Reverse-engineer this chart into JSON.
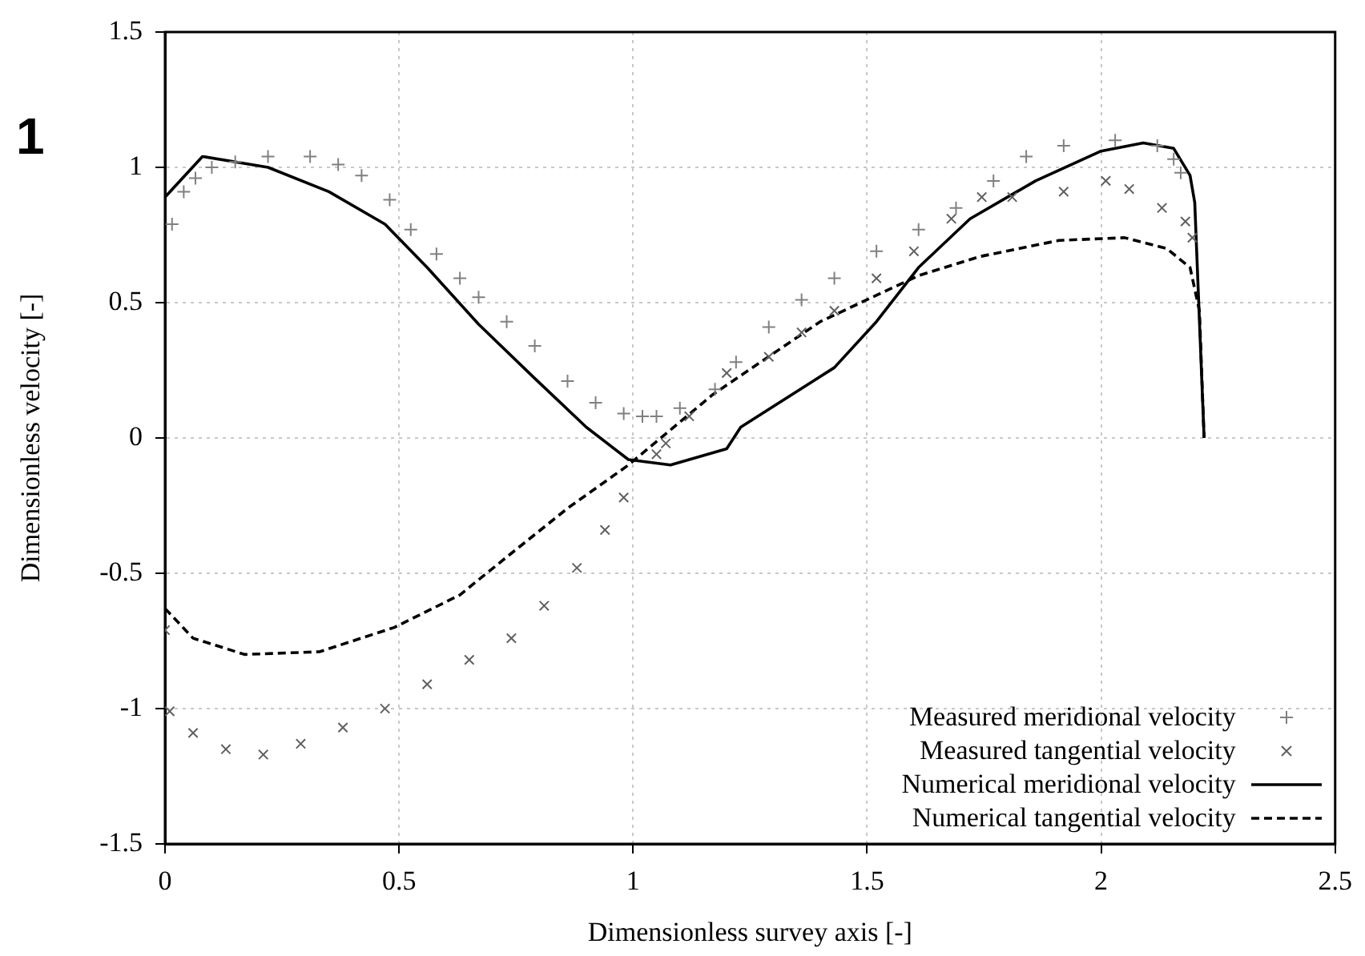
{
  "chart_data": {
    "type": "line",
    "xlabel": "Dimensionless survey axis [-]",
    "ylabel": "Dimensionless velocity [-]",
    "annotations": [
      "1"
    ],
    "xlim": [
      0,
      2.5
    ],
    "xticks": [
      0,
      0.5,
      1,
      1.5,
      2,
      2.5
    ],
    "ylim": [
      -1.5,
      1.5
    ],
    "yticks": [
      -1.5,
      -1,
      -0.5,
      0,
      0.5,
      1,
      1.5
    ],
    "grid": true,
    "legend": "bottom right",
    "series": [
      {
        "name": "Measured meridional velocity",
        "type": "scatter",
        "marker": "plus",
        "color": "#808080",
        "x": [
          0.015,
          0.04,
          0.065,
          0.1,
          0.15,
          0.22,
          0.31,
          0.37,
          0.42,
          0.48,
          0.525,
          0.58,
          0.63,
          0.67,
          0.73,
          0.79,
          0.86,
          0.92,
          0.98,
          1.02,
          1.05,
          1.1,
          1.175,
          1.22,
          1.29,
          1.36,
          1.43,
          1.52,
          1.61,
          1.69,
          1.77,
          1.84,
          1.92,
          2.03,
          2.12,
          2.155,
          2.17
        ],
        "values": [
          0.79,
          0.91,
          0.96,
          1.0,
          1.02,
          1.04,
          1.04,
          1.01,
          0.97,
          0.88,
          0.77,
          0.68,
          0.59,
          0.52,
          0.43,
          0.34,
          0.21,
          0.13,
          0.09,
          0.08,
          0.08,
          0.11,
          0.18,
          0.28,
          0.41,
          0.51,
          0.59,
          0.69,
          0.77,
          0.85,
          0.95,
          1.04,
          1.08,
          1.1,
          1.08,
          1.03,
          0.98
        ]
      },
      {
        "name": "Measured tangential velocity",
        "type": "scatter",
        "marker": "cross",
        "color": "#606060",
        "x": [
          0,
          0.01,
          0.06,
          0.13,
          0.21,
          0.29,
          0.38,
          0.47,
          0.56,
          0.65,
          0.74,
          0.81,
          0.88,
          0.94,
          0.98,
          1.05,
          1.07,
          1.12,
          1.2,
          1.29,
          1.36,
          1.43,
          1.52,
          1.6,
          1.68,
          1.745,
          1.81,
          1.92,
          2.01,
          2.06,
          2.13,
          2.18,
          2.195
        ],
        "values": [
          -0.71,
          -1.01,
          -1.09,
          -1.15,
          -1.17,
          -1.13,
          -1.07,
          -1.0,
          -0.91,
          -0.82,
          -0.74,
          -0.62,
          -0.48,
          -0.34,
          -0.22,
          -0.06,
          -0.02,
          0.08,
          0.24,
          0.3,
          0.39,
          0.47,
          0.59,
          0.69,
          0.81,
          0.89,
          0.89,
          0.91,
          0.95,
          0.92,
          0.85,
          0.8,
          0.74
        ]
      },
      {
        "name": "Numerical meridional velocity",
        "type": "line",
        "marker": "none",
        "line_style": "solid",
        "color": "#000000",
        "x": [
          0,
          0.08,
          0.22,
          0.35,
          0.47,
          0.56,
          0.67,
          0.79,
          0.9,
          0.99,
          1.08,
          1.2,
          1.23,
          1.43,
          1.52,
          1.61,
          1.72,
          1.86,
          2.0,
          2.09,
          2.155,
          2.19,
          2.2,
          2.22
        ],
        "values": [
          0.89,
          1.04,
          1.0,
          0.91,
          0.79,
          0.63,
          0.42,
          0.22,
          0.04,
          -0.08,
          -0.1,
          -0.04,
          0.04,
          0.26,
          0.43,
          0.63,
          0.81,
          0.95,
          1.06,
          1.09,
          1.07,
          0.97,
          0.87,
          0
        ]
      },
      {
        "name": "Numerical tangential velocity",
        "type": "line",
        "marker": "none",
        "line_style": "dashed",
        "color": "#000000",
        "x": [
          0,
          0.06,
          0.17,
          0.33,
          0.49,
          0.63,
          0.73,
          0.86,
          0.99,
          1.17,
          1.4,
          1.61,
          1.74,
          1.91,
          2.05,
          2.14,
          2.19,
          2.21,
          2.22
        ],
        "values": [
          -0.63,
          -0.74,
          -0.8,
          -0.79,
          -0.7,
          -0.58,
          -0.44,
          -0.26,
          -0.1,
          0.16,
          0.43,
          0.6,
          0.67,
          0.73,
          0.74,
          0.7,
          0.63,
          0.47,
          0
        ]
      }
    ]
  }
}
